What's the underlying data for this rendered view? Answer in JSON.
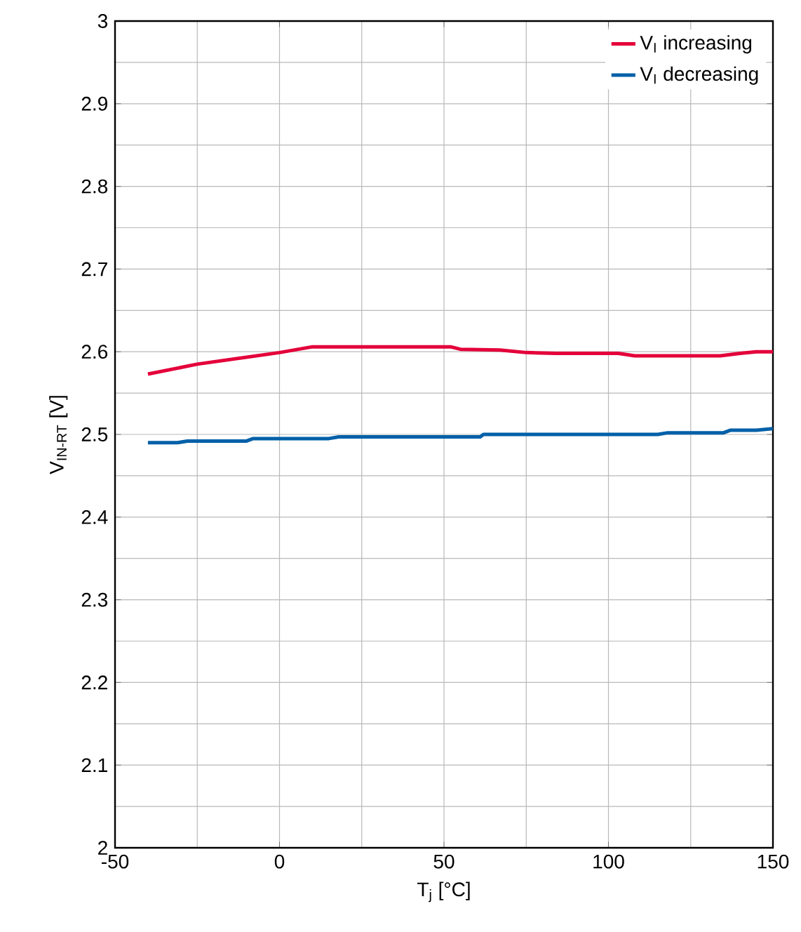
{
  "chart_data": {
    "type": "line",
    "xlabel": "T$_{j}$ [°C]",
    "ylabel": "V$_{IN-RT}$ [V]",
    "xlim": [
      -50,
      150
    ],
    "xticks": [
      -50,
      0,
      50,
      100,
      150
    ],
    "ylim": [
      2,
      3
    ],
    "yticks": [
      2,
      2.1,
      2.2,
      2.3,
      2.4,
      2.5,
      2.6,
      2.7,
      2.8,
      2.9,
      3
    ],
    "grid": true,
    "legend": "top right",
    "line_style": "solid",
    "marker": "none",
    "series": [
      {
        "name": "V$_{I}$ increasing",
        "color": "#e4003a",
        "x": [
          -40,
          -25,
          0,
          10,
          52,
          55,
          67,
          75,
          84,
          103,
          108,
          134,
          140,
          145,
          150
        ],
        "values": [
          2.573,
          2.585,
          2.599,
          2.606,
          2.606,
          2.603,
          2.602,
          2.599,
          2.598,
          2.598,
          2.595,
          2.595,
          2.598,
          2.6,
          2.6
        ]
      },
      {
        "name": "V$_{I}$ decreasing",
        "color": "#0060a8",
        "x": [
          -40,
          -31,
          -28,
          -10,
          -8,
          15,
          18,
          61,
          62,
          115,
          118,
          135,
          137,
          145,
          150
        ],
        "values": [
          2.49,
          2.49,
          2.492,
          2.492,
          2.495,
          2.495,
          2.497,
          2.497,
          2.5,
          2.5,
          2.502,
          2.502,
          2.505,
          2.505,
          2.507
        ]
      }
    ]
  }
}
